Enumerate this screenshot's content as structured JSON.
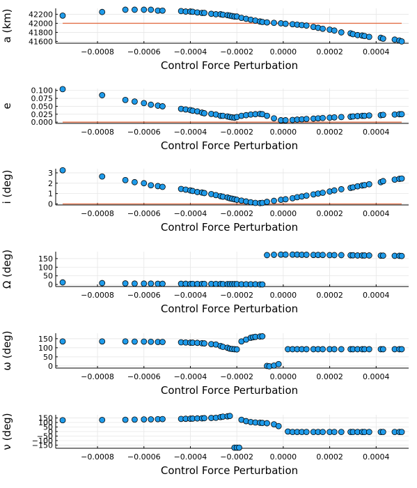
{
  "chart_data": [
    {
      "type": "scatter",
      "ylabel": "a (km)",
      "xlabel": "Control Force Perturbation",
      "xlim": [
        -0.00098,
        0.00054
      ],
      "xticks": [
        -0.0008,
        -0.0006,
        -0.0004,
        -0.0002,
        0.0,
        0.0002,
        0.0004
      ],
      "xtick_labels": [
        "−0.0008",
        "−0.0006",
        "−0.0004",
        "−0.0002",
        "0.0000",
        "0.0002",
        "0.0004"
      ],
      "ylim": [
        41560,
        42330
      ],
      "yticks": [
        41600,
        41800,
        42000,
        42200
      ],
      "ytick_labels": [
        "41600",
        "41800",
        "42000",
        "42200"
      ],
      "grid": true,
      "reference_line": 42000,
      "x": [
        -0.00095,
        -0.00078,
        -0.00068,
        -0.00064,
        -0.0006,
        -0.00057,
        -0.00054,
        -0.00052,
        -0.00044,
        -0.00042,
        -0.0004,
        -0.00039,
        -0.00037,
        -0.00035,
        -0.00034,
        -0.00031,
        -0.00029,
        -0.00027,
        -0.00026,
        -0.00024,
        -0.00023,
        -0.00022,
        -0.00021,
        -0.0002,
        -0.00018,
        -0.00016,
        -0.00014,
        -0.00012,
        -0.0001,
        -9e-05,
        -7e-05,
        -4e-05,
        -1e-05,
        1e-05,
        4e-05,
        6e-05,
        8e-05,
        0.0001,
        0.00013,
        0.00015,
        0.00017,
        0.0002,
        0.00022,
        0.00025,
        0.00029,
        0.0003,
        0.00032,
        0.00034,
        0.00035,
        0.00037,
        0.00042,
        0.00043,
        0.00048,
        0.0005,
        0.00051
      ],
      "values": [
        42170,
        42250,
        42300,
        42300,
        42300,
        42300,
        42280,
        42280,
        42270,
        42260,
        42260,
        42255,
        42240,
        42230,
        42230,
        42210,
        42200,
        42200,
        42190,
        42180,
        42170,
        42160,
        42150,
        42150,
        42120,
        42100,
        42080,
        42060,
        42040,
        42030,
        42020,
        42010,
        42000,
        41990,
        41980,
        41970,
        41960,
        41950,
        41920,
        41900,
        41880,
        41860,
        41840,
        41800,
        41780,
        41760,
        41740,
        41730,
        41720,
        41700,
        41680,
        41660,
        41640,
        41620,
        41600
      ]
    },
    {
      "type": "scatter",
      "ylabel": "e",
      "xlabel": "Control Force Perturbation",
      "xlim": [
        -0.00098,
        0.00054
      ],
      "xticks": [
        -0.0008,
        -0.0006,
        -0.0004,
        -0.0002,
        0.0,
        0.0002,
        0.0004
      ],
      "xtick_labels": [
        "−0.0008",
        "−0.0006",
        "−0.0004",
        "−0.0002",
        "0.0000",
        "0.0002",
        "0.0004"
      ],
      "ylim": [
        -0.004,
        0.106
      ],
      "yticks": [
        0.0,
        0.025,
        0.05,
        0.075,
        0.1
      ],
      "ytick_labels": [
        "0.000",
        "0.025",
        "0.050",
        "0.075",
        "0.100"
      ],
      "grid": true,
      "reference_line": 0.0,
      "x": [
        -0.00095,
        -0.00078,
        -0.00068,
        -0.00064,
        -0.0006,
        -0.00057,
        -0.00054,
        -0.00052,
        -0.00044,
        -0.00042,
        -0.0004,
        -0.00039,
        -0.00037,
        -0.00035,
        -0.00034,
        -0.00031,
        -0.00029,
        -0.00027,
        -0.00026,
        -0.00024,
        -0.00023,
        -0.00022,
        -0.00021,
        -0.0002,
        -0.00018,
        -0.00016,
        -0.00014,
        -0.00012,
        -0.0001,
        -9e-05,
        -7e-05,
        -4e-05,
        -1e-05,
        1e-05,
        4e-05,
        6e-05,
        8e-05,
        0.0001,
        0.00013,
        0.00015,
        0.00017,
        0.0002,
        0.00022,
        0.00025,
        0.00029,
        0.0003,
        0.00032,
        0.00034,
        0.00035,
        0.00037,
        0.00042,
        0.00043,
        0.00048,
        0.0005,
        0.00051
      ],
      "values": [
        0.104,
        0.085,
        0.07,
        0.065,
        0.06,
        0.055,
        0.052,
        0.05,
        0.042,
        0.04,
        0.038,
        0.036,
        0.034,
        0.03,
        0.028,
        0.026,
        0.024,
        0.02,
        0.02,
        0.018,
        0.016,
        0.015,
        0.014,
        0.016,
        0.02,
        0.022,
        0.024,
        0.025,
        0.026,
        0.025,
        0.02,
        0.012,
        0.006,
        0.006,
        0.007,
        0.008,
        0.009,
        0.01,
        0.011,
        0.012,
        0.013,
        0.014,
        0.015,
        0.016,
        0.017,
        0.018,
        0.019,
        0.02,
        0.02,
        0.021,
        0.022,
        0.023,
        0.024,
        0.025,
        0.025
      ]
    },
    {
      "type": "scatter",
      "ylabel": "i (deg)",
      "xlabel": "Control Force Perturbation",
      "xlim": [
        -0.00098,
        0.00054
      ],
      "xticks": [
        -0.0008,
        -0.0006,
        -0.0004,
        -0.0002,
        0.0,
        0.0002,
        0.0004
      ],
      "xtick_labels": [
        "−0.0008",
        "−0.0006",
        "−0.0004",
        "−0.0002",
        "0.0000",
        "0.0002",
        "0.0004"
      ],
      "ylim": [
        -0.1,
        3.4
      ],
      "yticks": [
        0,
        1,
        2,
        3
      ],
      "ytick_labels": [
        "0",
        "1",
        "2",
        "3"
      ],
      "grid": true,
      "reference_line": 0.0,
      "x": [
        -0.00095,
        -0.00078,
        -0.00068,
        -0.00064,
        -0.0006,
        -0.00057,
        -0.00054,
        -0.00052,
        -0.00044,
        -0.00042,
        -0.0004,
        -0.00039,
        -0.00037,
        -0.00035,
        -0.00034,
        -0.00031,
        -0.00029,
        -0.00027,
        -0.00026,
        -0.00024,
        -0.00023,
        -0.00022,
        -0.00021,
        -0.0002,
        -0.00018,
        -0.00016,
        -0.00014,
        -0.00012,
        -0.0001,
        -9e-05,
        -7e-05,
        -4e-05,
        -1e-05,
        1e-05,
        4e-05,
        6e-05,
        8e-05,
        0.0001,
        0.00013,
        0.00015,
        0.00017,
        0.0002,
        0.00022,
        0.00025,
        0.00029,
        0.0003,
        0.00032,
        0.00034,
        0.00035,
        0.00037,
        0.00042,
        0.00043,
        0.00048,
        0.0005,
        0.00051
      ],
      "values": [
        3.25,
        2.65,
        2.3,
        2.1,
        2.0,
        1.8,
        1.72,
        1.65,
        1.45,
        1.38,
        1.3,
        1.25,
        1.15,
        1.1,
        1.05,
        0.95,
        0.85,
        0.75,
        0.7,
        0.62,
        0.55,
        0.5,
        0.45,
        0.4,
        0.32,
        0.24,
        0.16,
        0.1,
        0.08,
        0.1,
        0.2,
        0.3,
        0.4,
        0.45,
        0.55,
        0.65,
        0.72,
        0.8,
        0.92,
        1.0,
        1.08,
        1.2,
        1.3,
        1.42,
        1.55,
        1.6,
        1.7,
        1.78,
        1.82,
        1.9,
        2.1,
        2.2,
        2.35,
        2.42,
        2.45
      ]
    },
    {
      "type": "scatter",
      "ylabel": "Ω (deg)",
      "xlabel": "Control Force Perturbation",
      "xlim": [
        -0.00098,
        0.00054
      ],
      "xticks": [
        -0.0008,
        -0.0006,
        -0.0004,
        -0.0002,
        0.0,
        0.0002,
        0.0004
      ],
      "xtick_labels": [
        "−0.0008",
        "−0.0006",
        "−0.0004",
        "−0.0002",
        "0.0000",
        "0.0002",
        "0.0004"
      ],
      "ylim": [
        -12,
        190
      ],
      "yticks": [
        0,
        50,
        100,
        150
      ],
      "ytick_labels": [
        "0",
        "50",
        "100",
        "150"
      ],
      "grid": true,
      "x": [
        -0.00095,
        -0.00078,
        -0.00068,
        -0.00064,
        -0.0006,
        -0.00057,
        -0.00054,
        -0.00052,
        -0.00044,
        -0.00042,
        -0.0004,
        -0.00039,
        -0.00037,
        -0.00035,
        -0.00034,
        -0.00031,
        -0.00029,
        -0.00027,
        -0.00026,
        -0.00024,
        -0.00023,
        -0.00022,
        -0.00021,
        -0.0002,
        -0.00018,
        -0.00016,
        -0.00014,
        -0.00012,
        -0.0001,
        -9e-05,
        -7e-05,
        -4e-05,
        -1e-05,
        1e-05,
        4e-05,
        6e-05,
        8e-05,
        0.0001,
        0.00013,
        0.00015,
        0.00017,
        0.0002,
        0.00022,
        0.00025,
        0.00029,
        0.0003,
        0.00032,
        0.00034,
        0.00035,
        0.00037,
        0.00042,
        0.00043,
        0.00048,
        0.0005,
        0.00051
      ],
      "values": [
        12,
        8,
        6,
        5,
        5,
        5,
        4,
        4,
        4,
        4,
        3,
        3,
        3,
        3,
        3,
        3,
        3,
        3,
        2,
        2,
        2,
        2,
        2,
        2,
        1,
        1,
        1,
        1,
        0,
        0,
        170,
        172,
        173,
        173,
        173,
        173,
        172,
        172,
        171,
        171,
        171,
        170,
        170,
        170,
        169,
        169,
        168,
        168,
        168,
        168,
        167,
        167,
        166,
        166,
        165
      ]
    },
    {
      "type": "scatter",
      "ylabel": "ω (deg)",
      "xlabel": "Control Force Perturbation",
      "xlim": [
        -0.00098,
        0.00054
      ],
      "xticks": [
        -0.0008,
        -0.0006,
        -0.0004,
        -0.0002,
        0.0,
        0.0002,
        0.0004
      ],
      "xtick_labels": [
        "−0.0008",
        "−0.0006",
        "−0.0004",
        "−0.0002",
        "0.0000",
        "0.0002",
        "0.0004"
      ],
      "ylim": [
        -12,
        180
      ],
      "yticks": [
        0,
        50,
        100,
        150
      ],
      "ytick_labels": [
        "0",
        "50",
        "100",
        "150"
      ],
      "grid": true,
      "x": [
        -0.00095,
        -0.00078,
        -0.00068,
        -0.00064,
        -0.0006,
        -0.00057,
        -0.00054,
        -0.00052,
        -0.00044,
        -0.00042,
        -0.0004,
        -0.00039,
        -0.00037,
        -0.00035,
        -0.00034,
        -0.00031,
        -0.00029,
        -0.00027,
        -0.00026,
        -0.00024,
        -0.00023,
        -0.00022,
        -0.00021,
        -0.0002,
        -0.00018,
        -0.00016,
        -0.00014,
        -0.00013,
        -0.00012,
        -0.0001,
        -9e-05,
        -7e-05,
        -6e-05,
        -4e-05,
        -2e-05,
        2e-05,
        4e-05,
        6e-05,
        8e-05,
        0.0001,
        0.00013,
        0.00015,
        0.00017,
        0.0002,
        0.00022,
        0.00025,
        0.00029,
        0.0003,
        0.00032,
        0.00034,
        0.00035,
        0.00037,
        0.00042,
        0.00043,
        0.00048,
        0.0005,
        0.00051
      ],
      "values": [
        135,
        135,
        135,
        134,
        134,
        133,
        132,
        132,
        130,
        129,
        128,
        128,
        127,
        125,
        124,
        120,
        118,
        110,
        105,
        100,
        95,
        93,
        92,
        91,
        135,
        145,
        155,
        158,
        160,
        162,
        163,
        0,
        -2,
        2,
        10,
        92,
        92,
        92,
        92,
        92,
        92,
        92,
        92,
        92,
        92,
        92,
        92,
        92,
        92,
        92,
        92,
        92,
        92,
        92,
        92,
        92,
        92
      ]
    },
    {
      "type": "scatter",
      "ylabel": "ν (deg)",
      "xlabel": "Control Force Perturbation",
      "xlim": [
        -0.00098,
        0.00054
      ],
      "xticks": [
        -0.0008,
        -0.0006,
        -0.0004,
        -0.0002,
        0.0,
        0.0002,
        0.0004
      ],
      "xtick_labels": [
        "−0.0008",
        "−0.0006",
        "−0.0004",
        "−0.0002",
        "0.0000",
        "0.0002",
        "0.0004"
      ],
      "ylim": [
        -185,
        185
      ],
      "yticks": [
        -150,
        -100,
        -50,
        0,
        50,
        100,
        150
      ],
      "ytick_labels": [
        "−150",
        "−100",
        "−50",
        "0",
        "50",
        "100",
        "150"
      ],
      "grid": true,
      "x": [
        -0.00095,
        -0.00078,
        -0.00068,
        -0.00064,
        -0.0006,
        -0.00057,
        -0.00054,
        -0.00052,
        -0.00044,
        -0.00042,
        -0.0004,
        -0.00039,
        -0.00037,
        -0.00035,
        -0.00034,
        -0.00031,
        -0.00029,
        -0.00027,
        -0.00026,
        -0.00024,
        -0.00023,
        -0.00021,
        -0.0002,
        -0.00019,
        -0.00018,
        -0.00016,
        -0.00014,
        -0.00012,
        -0.0001,
        -9e-05,
        -7e-05,
        -4e-05,
        -2e-05,
        2e-05,
        4e-05,
        6e-05,
        8e-05,
        0.0001,
        0.00013,
        0.00015,
        0.00017,
        0.0002,
        0.00022,
        0.00025,
        0.00029,
        0.0003,
        0.00032,
        0.00034,
        0.00035,
        0.00037,
        0.00042,
        0.00043,
        0.00048,
        0.0005,
        0.00051
      ],
      "values": [
        125,
        128,
        130,
        132,
        134,
        135,
        137,
        138,
        140,
        141,
        142,
        143,
        145,
        146,
        148,
        150,
        152,
        160,
        165,
        168,
        172,
        -178,
        -178,
        -178,
        130,
        115,
        105,
        100,
        97,
        95,
        92,
        80,
        60,
        0,
        -5,
        -5,
        -5,
        -5,
        -5,
        -5,
        -5,
        -5,
        -5,
        -5,
        -5,
        -5,
        -5,
        -5,
        -5,
        -5,
        -5,
        -5,
        -5,
        -5,
        -5
      ]
    }
  ]
}
